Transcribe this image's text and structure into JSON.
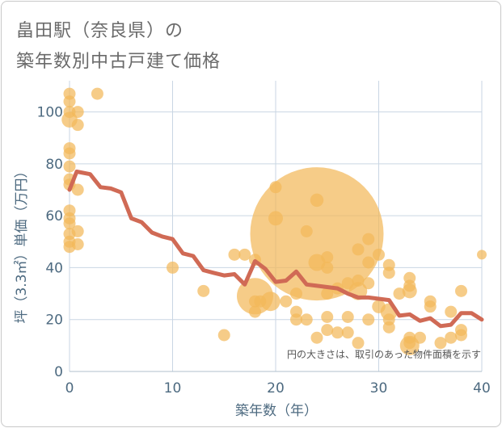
{
  "chart_data": {
    "type": "scatter",
    "title_line1": "畠田駅（奈良県）の",
    "title_line2": "築年数別中古戸建て価格",
    "xlabel": "築年数（年）",
    "ylabel": "坪（3.3㎡）単価（万円）",
    "note": "円の大きさは、取引のあった物件面積を示す",
    "xlim": [
      0,
      40
    ],
    "ylim": [
      0,
      112
    ],
    "xticks": [
      "0",
      "10",
      "20",
      "30",
      "40"
    ],
    "yticks": [
      "0",
      "20",
      "40",
      "60",
      "80",
      "100"
    ],
    "colors": {
      "bubble": "#f2b95a",
      "line": "#d06a55",
      "grid": "#c9d6e3"
    },
    "bubbles": [
      [
        0,
        107,
        1
      ],
      [
        0,
        104,
        1
      ],
      [
        0,
        100,
        1
      ],
      [
        0,
        97,
        1.3
      ],
      [
        0,
        86,
        1
      ],
      [
        0,
        84,
        1
      ],
      [
        0,
        79,
        1
      ],
      [
        0,
        74,
        1
      ],
      [
        0,
        72,
        1
      ],
      [
        0,
        62,
        1
      ],
      [
        0,
        59,
        1
      ],
      [
        0,
        57,
        1
      ],
      [
        0,
        53,
        1
      ],
      [
        0,
        50,
        1
      ],
      [
        0,
        48,
        1
      ],
      [
        0.8,
        100,
        1
      ],
      [
        0.8,
        95,
        1
      ],
      [
        0.8,
        70,
        1
      ],
      [
        0.8,
        54,
        1
      ],
      [
        0.8,
        49,
        1
      ],
      [
        2.7,
        107,
        1
      ],
      [
        10,
        40,
        1
      ],
      [
        13,
        31,
        1
      ],
      [
        15,
        14,
        1
      ],
      [
        16,
        45,
        1
      ],
      [
        17,
        45,
        1
      ],
      [
        18,
        43,
        1
      ],
      [
        18,
        29,
        3
      ],
      [
        18,
        27,
        1
      ],
      [
        18,
        23,
        1
      ],
      [
        18.5,
        27,
        1
      ],
      [
        19.5,
        27,
        1.6
      ],
      [
        20,
        71,
        1
      ],
      [
        20,
        59,
        1.2
      ],
      [
        21,
        27,
        1
      ],
      [
        22,
        30,
        1
      ],
      [
        22,
        23,
        1
      ],
      [
        22,
        20,
        1
      ],
      [
        23,
        54,
        1
      ],
      [
        23,
        20,
        1
      ],
      [
        24,
        53,
        11
      ],
      [
        24,
        66,
        1.1
      ],
      [
        24,
        42,
        1.4
      ],
      [
        24,
        13,
        1
      ],
      [
        25,
        44,
        1
      ],
      [
        25,
        40,
        1
      ],
      [
        25,
        30,
        1
      ],
      [
        25,
        21,
        1
      ],
      [
        25,
        16,
        1
      ],
      [
        26,
        32,
        1
      ],
      [
        26,
        15,
        1
      ],
      [
        27,
        34,
        1
      ],
      [
        27,
        21,
        1
      ],
      [
        27,
        15,
        1
      ],
      [
        28,
        47,
        1
      ],
      [
        28,
        35,
        1
      ],
      [
        28,
        31,
        1.5
      ],
      [
        28,
        11,
        1
      ],
      [
        29,
        51,
        1
      ],
      [
        29,
        42,
        1
      ],
      [
        29,
        34,
        1
      ],
      [
        29,
        20,
        1
      ],
      [
        30,
        45,
        1
      ],
      [
        30,
        25,
        1.1
      ],
      [
        31,
        41,
        1
      ],
      [
        31,
        38,
        1
      ],
      [
        31,
        23,
        1.4
      ],
      [
        31,
        20,
        1
      ],
      [
        31,
        17,
        1
      ],
      [
        32,
        30,
        1
      ],
      [
        33,
        36,
        1
      ],
      [
        33,
        33,
        1
      ],
      [
        33,
        31,
        1.2
      ],
      [
        33,
        13,
        1
      ],
      [
        33,
        11,
        1
      ],
      [
        33,
        10,
        1.6
      ],
      [
        34,
        13,
        1
      ],
      [
        35,
        27,
        1
      ],
      [
        35,
        25,
        1
      ],
      [
        36,
        11,
        1
      ],
      [
        37,
        23,
        1
      ],
      [
        37,
        13,
        1
      ],
      [
        38,
        31,
        1
      ],
      [
        38,
        16,
        1
      ],
      [
        38,
        14,
        1
      ],
      [
        40,
        45,
        0.8
      ]
    ],
    "line_x": [
      0,
      0.7,
      2,
      3,
      4,
      5,
      6,
      7,
      8,
      9,
      10,
      11,
      12,
      13,
      14,
      15,
      16,
      17,
      18,
      19,
      20,
      21,
      22,
      23,
      24,
      25,
      26,
      27,
      28,
      29,
      30,
      31,
      32,
      33,
      34,
      35,
      36,
      37,
      38,
      39,
      40
    ],
    "line_y": [
      70,
      77,
      76,
      71,
      70.5,
      69,
      59,
      57.5,
      53.5,
      52,
      51,
      45.5,
      44.5,
      39,
      38,
      37,
      37.5,
      33.5,
      42.5,
      39.5,
      34.5,
      35,
      38.5,
      33.5,
      33,
      32.5,
      32,
      30,
      28.5,
      28.5,
      28,
      27.5,
      21.5,
      22,
      19.5,
      20.5,
      17.5,
      18,
      22.5,
      22.5,
      20
    ]
  }
}
